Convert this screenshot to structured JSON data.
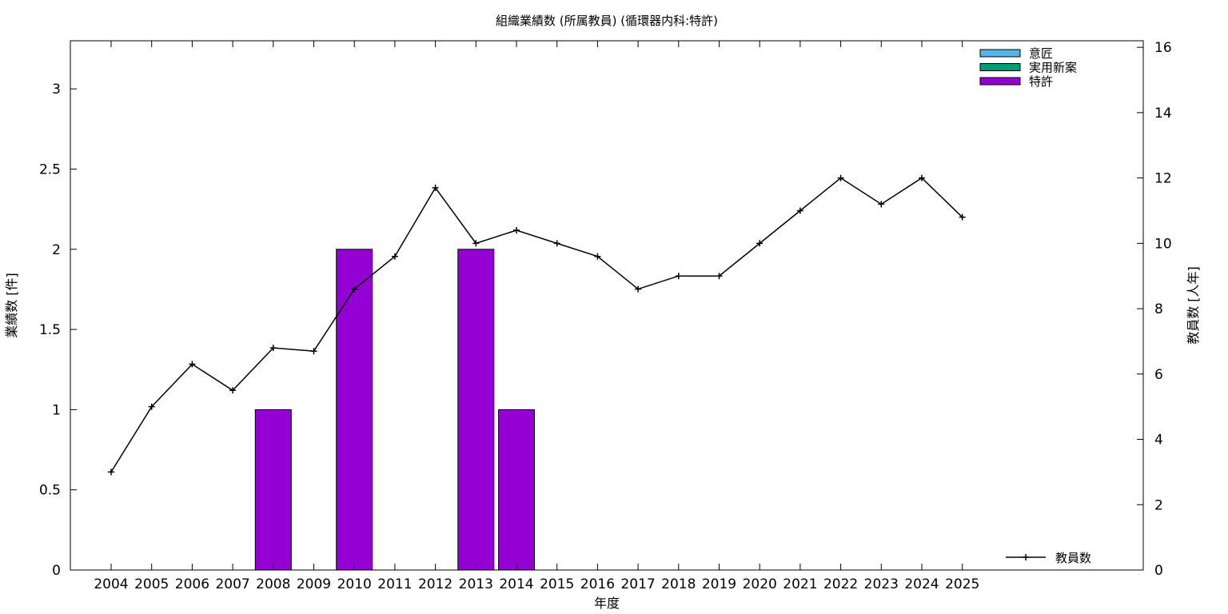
{
  "chart_data": {
    "type": "bar",
    "title": "組織業績数 (所属教員) (循環器内科:特許)",
    "xlabel": "年度",
    "ylabel": "業績数 [件]",
    "y2label": "教員数 [人年]",
    "categories": [
      "2004",
      "2005",
      "2006",
      "2007",
      "2008",
      "2009",
      "2010",
      "2011",
      "2012",
      "2013",
      "2014",
      "2015",
      "2016",
      "2017",
      "2018",
      "2019",
      "2020",
      "2021",
      "2022",
      "2023",
      "2024",
      "2025"
    ],
    "ylim": [
      0,
      3.3
    ],
    "y2lim": [
      0,
      16.2
    ],
    "yticks": [
      "0",
      "0.5",
      "1",
      "1.5",
      "2",
      "2.5",
      "3"
    ],
    "y2ticks": [
      "0",
      "2",
      "4",
      "6",
      "8",
      "10",
      "12",
      "14",
      "16"
    ],
    "series": [
      {
        "name": "意匠",
        "color": "#56b4e9",
        "values": [
          0,
          0,
          0,
          0,
          0,
          0,
          0,
          0,
          0,
          0,
          0,
          0,
          0,
          0,
          0,
          0,
          0,
          0,
          0,
          0,
          0,
          0
        ]
      },
      {
        "name": "実用新案",
        "color": "#009e73",
        "values": [
          0,
          0,
          0,
          0,
          0,
          0,
          0,
          0,
          0,
          0,
          0,
          0,
          0,
          0,
          0,
          0,
          0,
          0,
          0,
          0,
          0,
          0
        ]
      },
      {
        "name": "特許",
        "color": "#9400d3",
        "values": [
          0,
          0,
          0,
          0,
          1,
          0,
          2,
          0,
          0,
          2,
          1,
          0,
          0,
          0,
          0,
          0,
          0,
          0,
          0,
          0,
          0,
          0
        ]
      }
    ],
    "line_series": {
      "name": "教員数",
      "color": "#000000",
      "axis": "right",
      "x": [
        "2004",
        "2005",
        "2006",
        "2007",
        "2008",
        "2009",
        "2010",
        "2011",
        "2012",
        "2013",
        "2014",
        "2015",
        "2016",
        "2017",
        "2018",
        "2019",
        "2020",
        "2021",
        "2022",
        "2023",
        "2024",
        "2025"
      ],
      "values": [
        3.0,
        5.0,
        6.3,
        5.5,
        6.8,
        6.7,
        8.6,
        9.6,
        11.7,
        10.0,
        10.4,
        10.0,
        9.6,
        8.6,
        9.0,
        9.0,
        10.0,
        11.0,
        12.0,
        11.2,
        12.0,
        10.8
      ]
    },
    "legend_position": "top-right",
    "line_legend_position": "bottom-right",
    "grid": false
  }
}
